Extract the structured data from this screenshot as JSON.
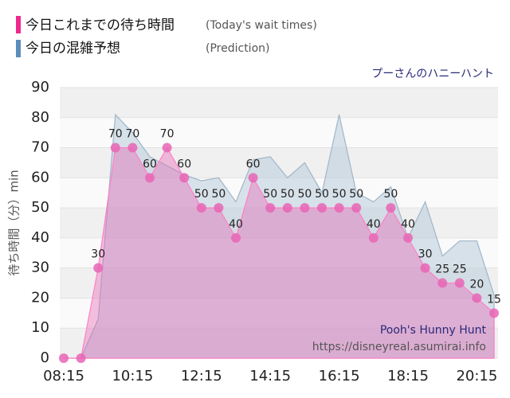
{
  "chart_data": {
    "type": "area",
    "subtitle": "プーさんのハニーハント",
    "y_label": "待ち時間（分）min",
    "watermark": [
      "Pooh's Hunny Hunt",
      "https://disneyreal.asumirai.info"
    ],
    "categories": [
      "08:15",
      null,
      null,
      null,
      "10:15",
      null,
      null,
      null,
      "12:15",
      null,
      null,
      null,
      "14:15",
      null,
      null,
      null,
      "16:15",
      null,
      null,
      null,
      "18:15",
      null,
      null,
      null,
      "20:15",
      null
    ],
    "ylim": [
      0,
      90
    ],
    "yticks": [
      0,
      10,
      20,
      30,
      40,
      50,
      60,
      70,
      80,
      90
    ],
    "grid": true,
    "series": [
      {
        "name": "今日の混雑予想",
        "note": "(Prediction)",
        "color": "#b9ccdb",
        "values": [
          0,
          0,
          13,
          81,
          75,
          67,
          64,
          61,
          59,
          60,
          52,
          66,
          67,
          60,
          65,
          55,
          81,
          55,
          52,
          57,
          40,
          52,
          34,
          39,
          39,
          21
        ]
      },
      {
        "name": "今日これまでの待ち時間",
        "note": "(Today's wait times)",
        "color": "#e865b5",
        "values": [
          0,
          0,
          30,
          70,
          70,
          60,
          70,
          60,
          50,
          50,
          40,
          60,
          50,
          50,
          50,
          50,
          50,
          50,
          40,
          50,
          40,
          30,
          25,
          25,
          20,
          15
        ]
      }
    ]
  }
}
